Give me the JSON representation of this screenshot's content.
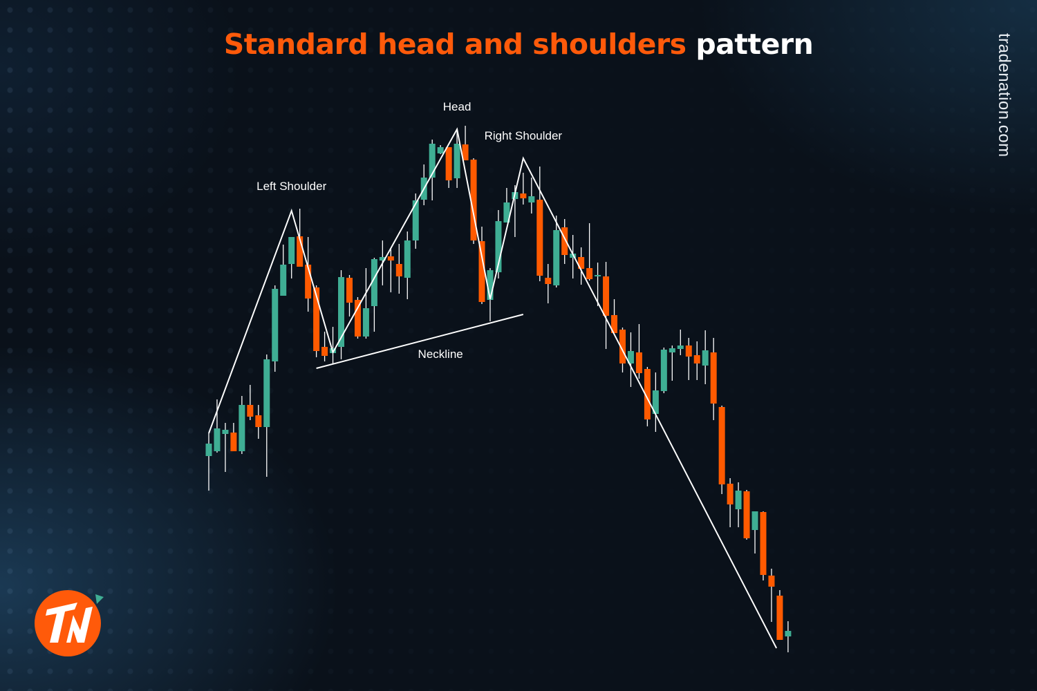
{
  "title": {
    "highlight": "Standard head and shoulders",
    "rest": "pattern"
  },
  "brand": {
    "site": "tradenation.com",
    "logo_text": "TN",
    "logo_color": "#ff5a0a"
  },
  "colors": {
    "up": "#3fae94",
    "down": "#ff5a00",
    "annotation": "#ffffff",
    "background": "#0a111a"
  },
  "chart_data": {
    "type": "candlestick",
    "title": "Standard head and shoulders pattern",
    "xlabel": "",
    "ylabel": "",
    "axes_visible": false,
    "grid": false,
    "ohlc_fields": [
      "open",
      "high",
      "low",
      "close"
    ],
    "candles": [
      [
        34.0,
        37.3,
        29.0,
        35.8
      ],
      [
        34.7,
        42.2,
        34.5,
        38.0
      ],
      [
        37.2,
        38.8,
        31.7,
        37.8
      ],
      [
        37.4,
        38.8,
        34.7,
        34.7
      ],
      [
        34.7,
        42.7,
        34.3,
        41.4
      ],
      [
        41.4,
        44.3,
        39.2,
        39.7
      ],
      [
        39.9,
        41.4,
        36.5,
        38.2
      ],
      [
        38.2,
        48.7,
        31.0,
        48.0
      ],
      [
        47.7,
        58.7,
        46.2,
        58.2
      ],
      [
        57.2,
        64.6,
        57.2,
        61.7
      ],
      [
        61.8,
        65.7,
        59.7,
        65.7
      ],
      [
        65.8,
        69.8,
        61.4,
        61.4
      ],
      [
        61.7,
        65.7,
        54.9,
        56.8
      ],
      [
        58.4,
        58.7,
        48.3,
        49.2
      ],
      [
        49.8,
        52.0,
        47.7,
        48.5
      ],
      [
        48.9,
        52.7,
        47.3,
        49.6
      ],
      [
        49.8,
        60.9,
        48.0,
        59.9
      ],
      [
        59.8,
        60.2,
        54.2,
        56.2
      ],
      [
        56.6,
        57.0,
        51.0,
        51.3
      ],
      [
        51.3,
        61.2,
        51.0,
        55.4
      ],
      [
        55.7,
        62.7,
        52.0,
        62.5
      ],
      [
        62.3,
        65.2,
        58.7,
        62.8
      ],
      [
        62.9,
        64.1,
        57.7,
        62.3
      ],
      [
        61.8,
        64.7,
        57.5,
        60.0
      ],
      [
        59.8,
        66.5,
        56.7,
        65.2
      ],
      [
        65.2,
        72.0,
        64.0,
        71.0
      ],
      [
        71.1,
        76.2,
        70.3,
        74.3
      ],
      [
        74.3,
        79.8,
        71.0,
        79.2
      ],
      [
        77.8,
        79.0,
        77.7,
        78.7
      ],
      [
        78.7,
        78.7,
        72.8,
        73.9
      ],
      [
        74.2,
        81.2,
        72.8,
        79.2
      ],
      [
        79.1,
        81.8,
        76.8,
        76.8
      ],
      [
        76.9,
        77.1,
        64.7,
        65.2
      ],
      [
        65.1,
        67.2,
        56.0,
        56.3
      ],
      [
        56.6,
        61.2,
        53.5,
        60.9
      ],
      [
        60.6,
        69.6,
        59.7,
        68.0
      ],
      [
        67.8,
        72.8,
        67.8,
        70.7
      ],
      [
        71.2,
        73.2,
        65.7,
        72.2
      ],
      [
        72.0,
        75.0,
        70.4,
        71.3
      ],
      [
        70.7,
        74.3,
        69.1,
        71.6
      ],
      [
        71.1,
        75.9,
        59.3,
        60.1
      ],
      [
        59.8,
        61.8,
        56.1,
        58.9
      ],
      [
        58.7,
        68.8,
        58.4,
        66.7
      ],
      [
        67.1,
        68.3,
        61.8,
        63.1
      ],
      [
        62.7,
        66.0,
        59.7,
        63.3
      ],
      [
        62.8,
        64.2,
        58.8,
        61.1
      ],
      [
        61.2,
        67.7,
        59.4,
        59.6
      ],
      [
        60.0,
        62.0,
        55.7,
        60.2
      ],
      [
        60.0,
        62.1,
        49.5,
        54.3
      ],
      [
        54.4,
        56.7,
        51.8,
        51.8
      ],
      [
        52.3,
        52.6,
        46.1,
        47.4
      ],
      [
        47.4,
        51.9,
        44.0,
        49.2
      ],
      [
        49.0,
        53.1,
        45.2,
        46.0
      ],
      [
        46.6,
        46.9,
        38.3,
        39.3
      ],
      [
        40.1,
        46.1,
        37.5,
        43.5
      ],
      [
        43.4,
        49.7,
        43.1,
        49.4
      ],
      [
        49.0,
        50.0,
        44.9,
        49.6
      ],
      [
        49.5,
        52.3,
        48.6,
        50.0
      ],
      [
        50.0,
        51.1,
        45.0,
        48.4
      ],
      [
        48.6,
        50.6,
        45.0,
        47.4
      ],
      [
        47.1,
        52.2,
        44.4,
        49.3
      ],
      [
        49.0,
        51.1,
        39.2,
        41.6
      ],
      [
        41.1,
        41.3,
        28.5,
        29.9
      ],
      [
        30.0,
        30.8,
        23.7,
        27.0
      ],
      [
        26.3,
        30.2,
        23.7,
        29.0
      ],
      [
        28.9,
        29.1,
        21.9,
        22.1
      ],
      [
        23.3,
        26.0,
        19.9,
        26.0
      ],
      [
        25.9,
        26.0,
        16.0,
        16.8
      ],
      [
        16.7,
        17.7,
        10.0,
        15.1
      ],
      [
        13.8,
        14.6,
        7.4,
        7.4
      ],
      [
        7.9,
        10.1,
        5.6,
        8.7
      ]
    ],
    "pattern_line": [
      [
        1,
        37.3
      ],
      [
        11,
        69.5
      ],
      [
        16,
        49.0
      ],
      [
        31,
        81.3
      ],
      [
        35,
        56.7
      ],
      [
        39,
        77.1
      ],
      [
        69.6,
        6.2
      ]
    ],
    "neckline": [
      [
        14.0,
        46.7
      ],
      [
        39.0,
        54.5
      ]
    ],
    "annotations": [
      {
        "text": "Left Shoulder",
        "candle": 11,
        "price": 72.5
      },
      {
        "text": "Head",
        "candle": 31,
        "price": 84.0
      },
      {
        "text": "Right Shoulder",
        "candle": 39,
        "price": 79.8
      },
      {
        "text": "Neckline",
        "candle": 29.0,
        "price": 48.2
      }
    ]
  }
}
